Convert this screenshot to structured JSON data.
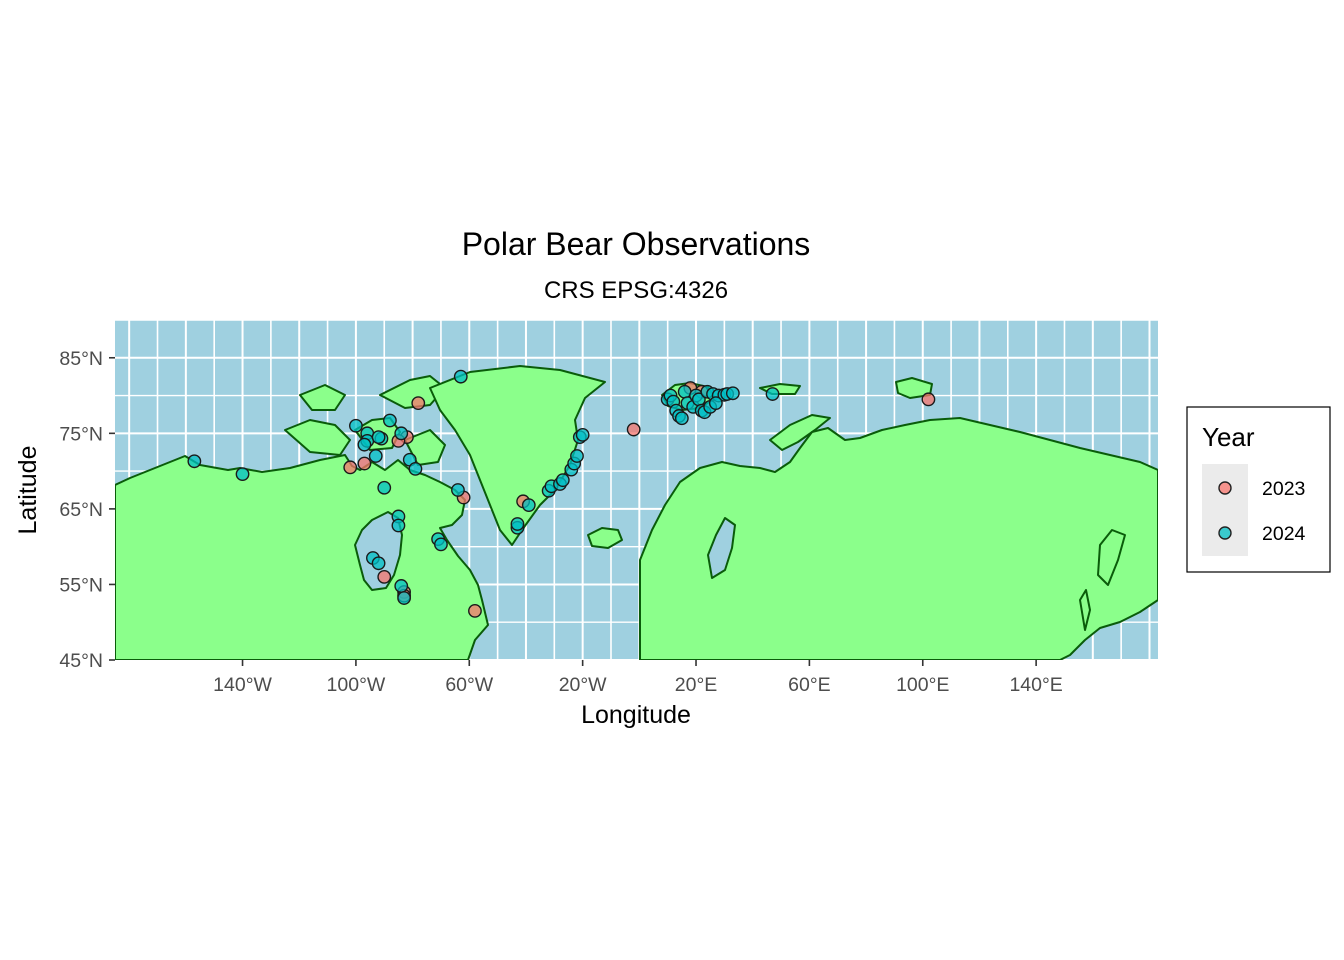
{
  "chart_data": {
    "type": "scatter",
    "title": "Polar Bear Observations",
    "subtitle": "CRS EPSG:4326",
    "xlabel": "Longitude",
    "ylabel": "Latitude",
    "xlim": [
      -185,
      183
    ],
    "ylim": [
      45,
      90
    ],
    "x_ticks": [
      -140,
      -100,
      -60,
      -20,
      20,
      60,
      100,
      140
    ],
    "x_tick_labels": [
      "140°W",
      "100°W",
      "60°W",
      "20°W",
      "20°E",
      "60°E",
      "100°E",
      "140°E"
    ],
    "y_ticks": [
      45,
      55,
      65,
      75,
      85
    ],
    "y_tick_labels": [
      "45°N",
      "55°N",
      "65°N",
      "75°N",
      "85°N"
    ],
    "grid": true,
    "colors": {
      "ocean": "#9fd0e0",
      "land": "#8bff8b",
      "border": "#0a5c0a",
      "grid": "#ffffff"
    },
    "legend": {
      "title": "Year",
      "position": "right",
      "entries": [
        {
          "label": "2023",
          "color": "#f8766d"
        },
        {
          "label": "2024",
          "color": "#00bfc4"
        }
      ]
    },
    "series": [
      {
        "name": "2023",
        "color": "#f8766d",
        "points": [
          [
            -102,
            70.5
          ],
          [
            -97,
            71
          ],
          [
            -78,
            79
          ],
          [
            -82,
            74.5
          ],
          [
            -85,
            74
          ],
          [
            -62,
            66.5
          ],
          [
            -90,
            56
          ],
          [
            -83,
            54
          ],
          [
            -58,
            51.5
          ],
          [
            -41,
            66
          ],
          [
            -2,
            75.5
          ],
          [
            18,
            81
          ],
          [
            22,
            80.5
          ],
          [
            102,
            79.5
          ],
          [
            -83,
            53.5
          ]
        ]
      },
      {
        "name": "2024",
        "color": "#00bfc4",
        "points": [
          [
            -157,
            71.3
          ],
          [
            -140,
            69.6
          ],
          [
            -100,
            76
          ],
          [
            -96,
            75
          ],
          [
            -93,
            72
          ],
          [
            -96,
            74
          ],
          [
            -91,
            74.3
          ],
          [
            -88,
            76.7
          ],
          [
            -84,
            75
          ],
          [
            -81,
            71.5
          ],
          [
            -79,
            70.3
          ],
          [
            -90,
            67.8
          ],
          [
            -63,
            82.5
          ],
          [
            -64,
            67.5
          ],
          [
            -94,
            58.5
          ],
          [
            -92,
            57.8
          ],
          [
            -85,
            64
          ],
          [
            -85,
            62.8
          ],
          [
            -84,
            54.8
          ],
          [
            -83,
            53.2
          ],
          [
            -71,
            61
          ],
          [
            -70,
            60.3
          ],
          [
            -43,
            62.5
          ],
          [
            -43,
            63
          ],
          [
            -39,
            65.5
          ],
          [
            -32,
            67.4
          ],
          [
            -31,
            68
          ],
          [
            -28,
            68.3
          ],
          [
            -27,
            68.8
          ],
          [
            -24,
            70.2
          ],
          [
            -23,
            71
          ],
          [
            -22,
            72
          ],
          [
            -21,
            74.5
          ],
          [
            -20,
            74.8
          ],
          [
            10,
            79.5
          ],
          [
            11,
            80
          ],
          [
            12,
            79.2
          ],
          [
            13,
            78
          ],
          [
            14,
            77.3
          ],
          [
            15,
            77
          ],
          [
            16,
            80.5
          ],
          [
            17,
            79
          ],
          [
            19,
            78.5
          ],
          [
            20,
            80
          ],
          [
            21,
            79.5
          ],
          [
            22,
            78
          ],
          [
            23,
            77.8
          ],
          [
            24,
            80.5
          ],
          [
            25,
            78.5
          ],
          [
            26,
            80.2
          ],
          [
            28,
            80
          ],
          [
            30,
            80.1
          ],
          [
            31,
            80.2
          ],
          [
            33,
            80.3
          ],
          [
            27,
            79
          ],
          [
            47,
            80.2
          ],
          [
            -97,
            73.5
          ],
          [
            -92,
            74.5
          ]
        ]
      }
    ]
  }
}
